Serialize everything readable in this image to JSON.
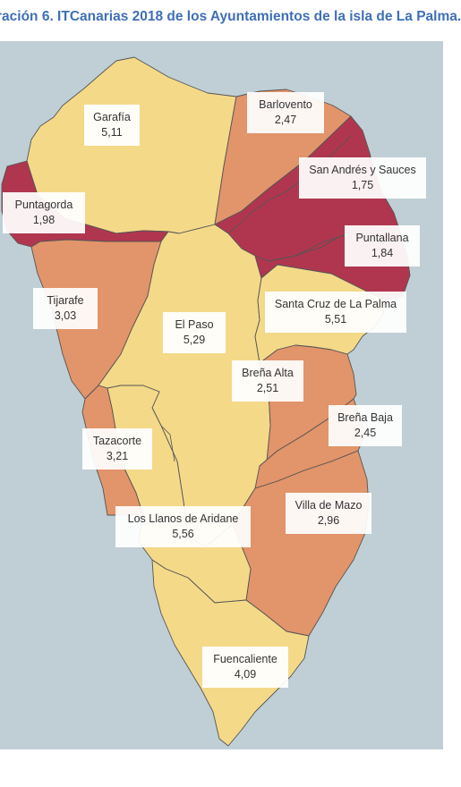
{
  "title": "ración 6. ITCanarias 2018 de los Ayuntamientos de la isla de La Palma.",
  "colors": {
    "sea": "#bfcfd5",
    "low": "#b0364f",
    "mid": "#e2946a",
    "high": "#f4d989",
    "border": "#555555"
  },
  "municipalities": [
    {
      "name": "Garafía",
      "value": "5,11",
      "category": "high"
    },
    {
      "name": "Barlovento",
      "value": "2,47",
      "category": "mid"
    },
    {
      "name": "San Andrés y Sauces",
      "value": "1,75",
      "category": "low"
    },
    {
      "name": "Puntagorda",
      "value": "1,98",
      "category": "low"
    },
    {
      "name": "Puntallana",
      "value": "1,84",
      "category": "low"
    },
    {
      "name": "Tijarafe",
      "value": "3,03",
      "category": "mid"
    },
    {
      "name": "El Paso",
      "value": "5,29",
      "category": "high"
    },
    {
      "name": "Santa Cruz de La Palma",
      "value": "5,51",
      "category": "high"
    },
    {
      "name": "Breña Alta",
      "value": "2,51",
      "category": "mid"
    },
    {
      "name": "Breña Baja",
      "value": "2,45",
      "category": "mid"
    },
    {
      "name": "Tazacorte",
      "value": "3,21",
      "category": "mid"
    },
    {
      "name": "Villa de Mazo",
      "value": "2,96",
      "category": "mid"
    },
    {
      "name": "Los Llanos de Aridane",
      "value": "5,56",
      "category": "high"
    },
    {
      "name": "Fuencaliente",
      "value": "4,09",
      "category": "high"
    }
  ]
}
